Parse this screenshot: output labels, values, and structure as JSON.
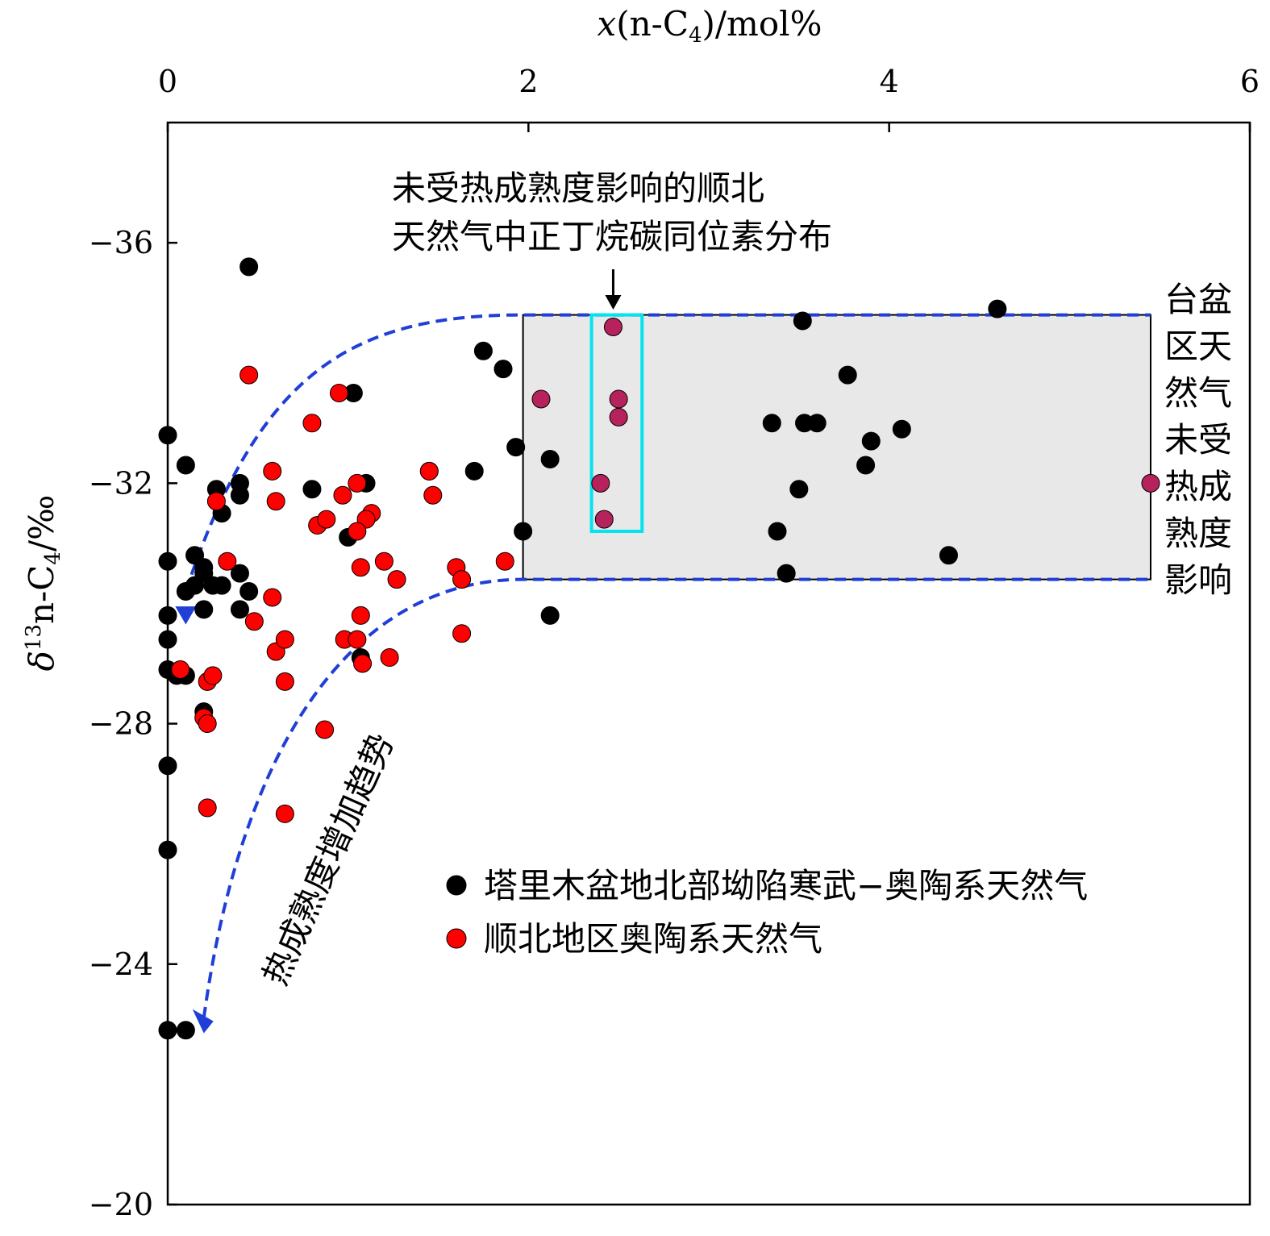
{
  "chart_data": {
    "type": "scatter",
    "x_axis": {
      "label_italic": "x",
      "label_main": "(n-C",
      "label_sub": "4",
      "label_tail": ")/mol%",
      "position": "top",
      "range": [
        0,
        6
      ],
      "ticks": [
        0,
        2,
        4,
        6
      ],
      "tick_labels": [
        "0",
        "2",
        "4",
        "6"
      ]
    },
    "y_axis": {
      "label_italic": "δ",
      "label_sup": "13",
      "label_main": "n-C",
      "label_sub": "4",
      "label_tail": "/‰",
      "range": [
        -38,
        -20
      ],
      "reversed": true,
      "ticks": [
        -36,
        -32,
        -28,
        -24,
        -20
      ],
      "tick_labels": [
        "−36",
        "−32",
        "−28",
        "−24",
        "−20"
      ]
    },
    "series": [
      {
        "name": "塔里木盆地北部坳陷寒武−奥陶系天然气",
        "color": "#000000",
        "points": [
          [
            0.0,
            -32.8
          ],
          [
            0.1,
            -32.3
          ],
          [
            0.0,
            -30.7
          ],
          [
            0.15,
            -30.8
          ],
          [
            0.2,
            -30.6
          ],
          [
            0.2,
            -30.5
          ],
          [
            0.1,
            -30.2
          ],
          [
            0.15,
            -30.3
          ],
          [
            0.25,
            -30.3
          ],
          [
            0.3,
            -30.3
          ],
          [
            0.2,
            -29.9
          ],
          [
            0.0,
            -29.8
          ],
          [
            0.0,
            -29.4
          ],
          [
            0.0,
            -28.9
          ],
          [
            0.05,
            -28.8
          ],
          [
            0.1,
            -28.8
          ],
          [
            0.2,
            -28.2
          ],
          [
            0.0,
            -27.3
          ],
          [
            0.0,
            -25.9
          ],
          [
            0.0,
            -22.9
          ],
          [
            0.1,
            -22.9
          ],
          [
            0.45,
            -35.6
          ],
          [
            0.27,
            -31.9
          ],
          [
            0.3,
            -31.5
          ],
          [
            0.4,
            -32.0
          ],
          [
            0.4,
            -31.8
          ],
          [
            0.4,
            -30.5
          ],
          [
            0.45,
            -30.2
          ],
          [
            0.4,
            -29.9
          ],
          [
            0.8,
            -31.9
          ],
          [
            1.03,
            -33.5
          ],
          [
            1.1,
            -32.0
          ],
          [
            1.0,
            -31.1
          ],
          [
            1.07,
            -29.1
          ],
          [
            1.45,
            -32.2
          ],
          [
            1.75,
            -34.2
          ],
          [
            1.7,
            -32.2
          ],
          [
            1.86,
            -33.9
          ],
          [
            1.93,
            -32.6
          ],
          [
            1.97,
            -31.2
          ],
          [
            2.12,
            -32.4
          ],
          [
            2.12,
            -29.8
          ],
          [
            3.35,
            -33.0
          ],
          [
            3.38,
            -31.2
          ],
          [
            3.43,
            -30.5
          ],
          [
            3.5,
            -31.9
          ],
          [
            3.52,
            -34.7
          ],
          [
            3.53,
            -33.0
          ],
          [
            3.6,
            -33.0
          ],
          [
            3.77,
            -33.8
          ],
          [
            3.87,
            -32.3
          ],
          [
            3.9,
            -32.7
          ],
          [
            4.07,
            -32.9
          ],
          [
            4.33,
            -30.8
          ],
          [
            4.6,
            -34.9
          ]
        ]
      },
      {
        "name": "顺北地区奥陶系天然气",
        "color": "#ff0000",
        "points": [
          [
            0.45,
            -33.8
          ],
          [
            0.95,
            -33.5
          ],
          [
            0.8,
            -33.0
          ],
          [
            0.58,
            -32.2
          ],
          [
            0.6,
            -31.7
          ],
          [
            0.27,
            -31.7
          ],
          [
            1.05,
            -32.0
          ],
          [
            0.97,
            -31.8
          ],
          [
            0.83,
            -31.3
          ],
          [
            0.88,
            -31.4
          ],
          [
            1.13,
            -31.5
          ],
          [
            1.1,
            -31.4
          ],
          [
            1.05,
            -31.2
          ],
          [
            1.45,
            -32.2
          ],
          [
            1.47,
            -31.8
          ],
          [
            0.33,
            -30.7
          ],
          [
            1.07,
            -30.6
          ],
          [
            1.2,
            -30.7
          ],
          [
            1.27,
            -30.4
          ],
          [
            1.6,
            -30.6
          ],
          [
            1.63,
            -30.4
          ],
          [
            1.87,
            -30.7
          ],
          [
            0.58,
            -30.1
          ],
          [
            0.48,
            -29.7
          ],
          [
            1.07,
            -29.8
          ],
          [
            0.6,
            -29.2
          ],
          [
            0.65,
            -29.4
          ],
          [
            0.98,
            -29.4
          ],
          [
            1.05,
            -29.4
          ],
          [
            1.08,
            -29.0
          ],
          [
            1.23,
            -29.1
          ],
          [
            1.63,
            -29.5
          ],
          [
            0.07,
            -28.9
          ],
          [
            0.22,
            -28.7
          ],
          [
            0.25,
            -28.8
          ],
          [
            0.65,
            -28.7
          ],
          [
            0.2,
            -28.1
          ],
          [
            0.22,
            -28.0
          ],
          [
            0.87,
            -27.9
          ],
          [
            0.22,
            -26.6
          ],
          [
            0.65,
            -26.5
          ]
        ]
      },
      {
        "name": "",
        "color": "#b5225c",
        "points": [
          [
            2.07,
            -33.4
          ],
          [
            2.47,
            -34.6
          ],
          [
            2.5,
            -33.4
          ],
          [
            2.5,
            -33.1
          ],
          [
            2.4,
            -32.0
          ],
          [
            2.42,
            -31.4
          ],
          [
            5.45,
            -32.0
          ]
        ]
      }
    ],
    "annotations": {
      "top_line1": "未受热成熟度影响的顺北",
      "top_line2": "天然气中正丁烷碳同位素分布",
      "right_lines": [
        "台盆",
        "区天",
        "然气",
        "未受",
        "热成",
        "熟度",
        "影响"
      ],
      "trend_label": "热成熟度增加趋势"
    },
    "regions": {
      "gray_box": {
        "x": [
          1.97,
          5.45
        ],
        "y": [
          -34.8,
          -30.4
        ],
        "fill": "#e8e8e8"
      },
      "cyan_box": {
        "x": [
          2.35,
          2.63
        ],
        "y": [
          -34.8,
          -31.2
        ],
        "stroke": "#00e5ee"
      }
    },
    "colors": {
      "dash_curve": "#1f3fd6",
      "trend_arrow": "#1f3fd6"
    },
    "grid": false,
    "legend_placement": "lower-right"
  }
}
